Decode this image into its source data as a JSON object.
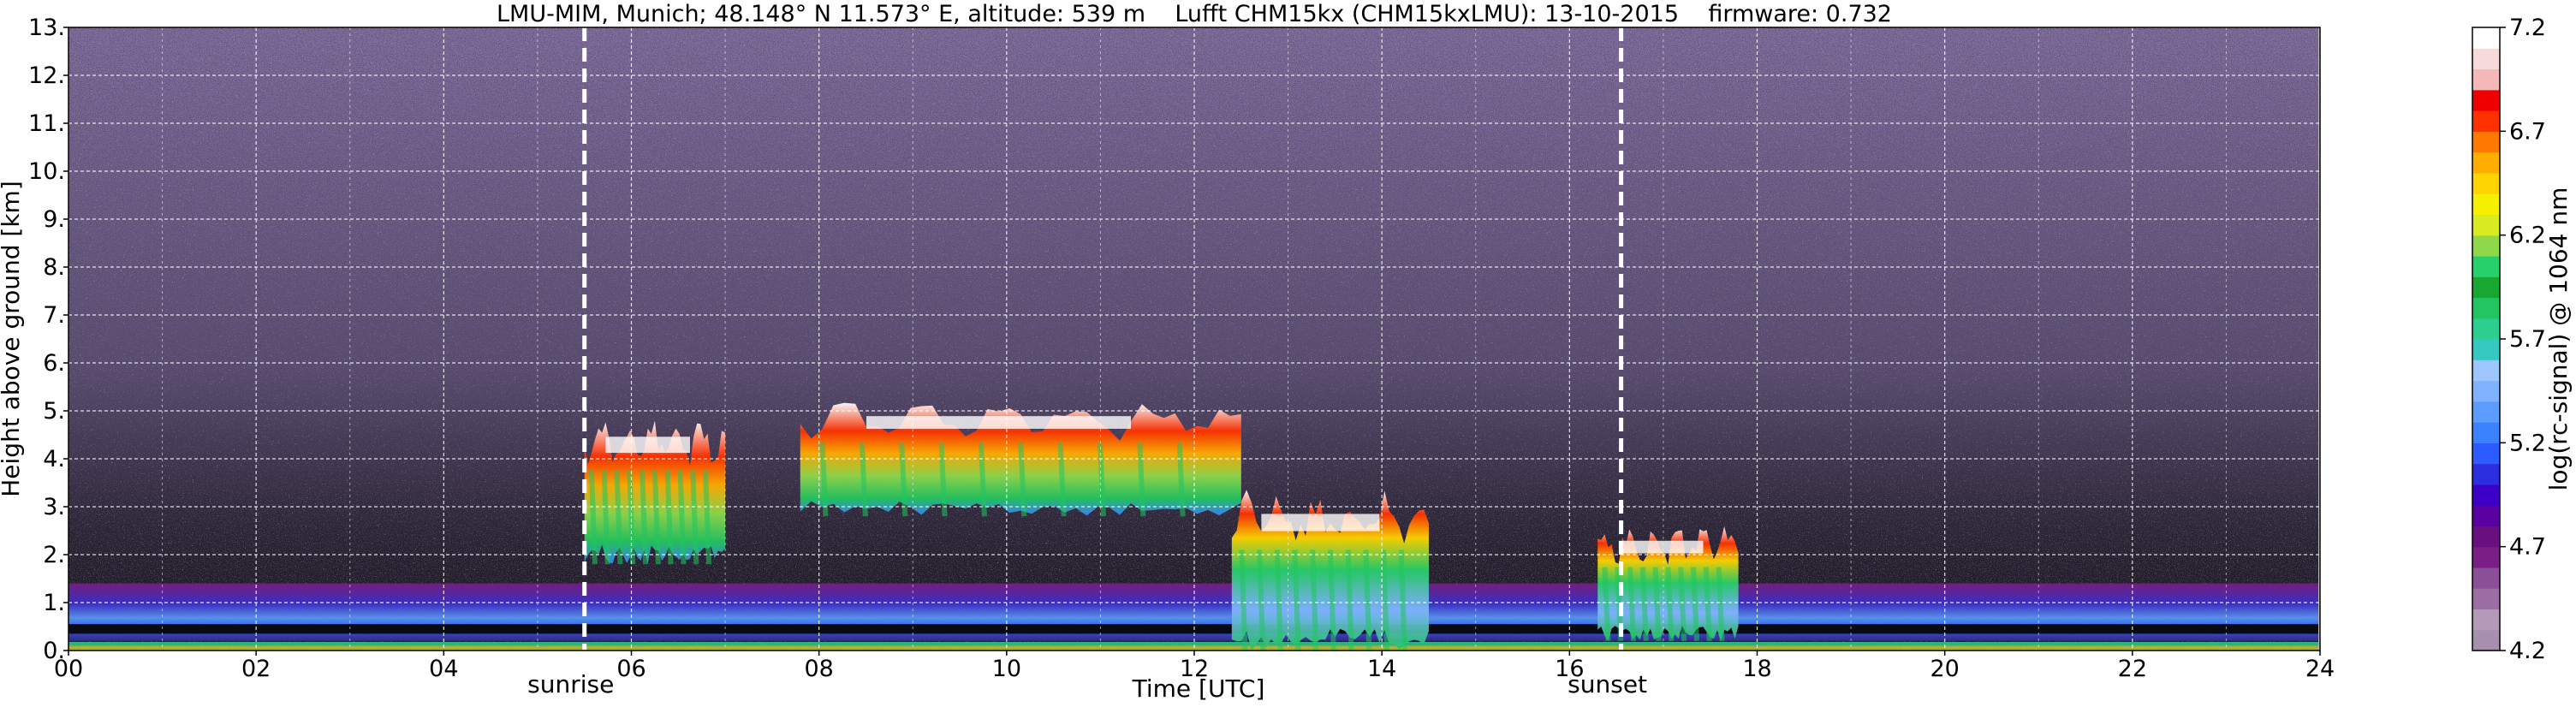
{
  "chart_data": {
    "type": "heatmap",
    "title": "LMU-MIM, Munich; 48.148° N 11.573° E, altitude: 539 m    Lufft CHM15kx (CHM15kxLMU): 13-10-2015    firmware: 0.732",
    "xlabel": "Time [UTC]",
    "ylabel": "Height above ground [km]",
    "xlim": [
      0,
      24
    ],
    "ylim": [
      0,
      13
    ],
    "x_ticks": [
      "00",
      "02",
      "04",
      "06",
      "08",
      "10",
      "12",
      "14",
      "16",
      "18",
      "20",
      "22",
      "24"
    ],
    "y_ticks": [
      "0.",
      "1.",
      "2.",
      "3.",
      "4.",
      "5.",
      "6.",
      "7.",
      "8.",
      "9.",
      "10.",
      "11.",
      "12.",
      "13."
    ],
    "grid": true,
    "annotations": [
      {
        "text": "sunrise",
        "x": 5.5
      },
      {
        "text": "sunset",
        "x": 16.55
      }
    ],
    "colorbar": {
      "label": "log(rc-signal) @ 1064 nm",
      "min": 4.2,
      "max": 7.2,
      "ticks": [
        "4.2",
        "4.7",
        "5.2",
        "5.7",
        "6.2",
        "6.7",
        "7.2"
      ],
      "colors": [
        "#a78fb0",
        "#b49ab9",
        "#9c6fa4",
        "#8a4f97",
        "#7a1f86",
        "#6a0f80",
        "#5a00a0",
        "#3c00c8",
        "#2b2fe0",
        "#2c5cff",
        "#3b82ff",
        "#5c9cff",
        "#7fb3ff",
        "#9dc6ff",
        "#35c8c0",
        "#2ccf90",
        "#22c560",
        "#18a832",
        "#26d06a",
        "#8fd84a",
        "#d8ea20",
        "#f4f000",
        "#ffd400",
        "#ffad00",
        "#ff7800",
        "#ff3000",
        "#f00000",
        "#f4b8b8",
        "#f7dada",
        "#ffffff"
      ]
    },
    "features": [
      {
        "name": "background noise",
        "x": [
          0,
          24
        ],
        "y": [
          0,
          13
        ]
      },
      {
        "name": "boundary layer aerosol",
        "x": [
          0,
          24
        ],
        "y": [
          0.2,
          1.4
        ]
      },
      {
        "name": "cloud",
        "x": [
          5.5,
          7.0
        ],
        "y": [
          1.8,
          4.6
        ]
      },
      {
        "name": "cloud",
        "x": [
          7.8,
          12.5
        ],
        "y": [
          2.8,
          5.0
        ]
      },
      {
        "name": "cloud",
        "x": [
          12.4,
          14.5
        ],
        "y": [
          0.0,
          3.0
        ]
      },
      {
        "name": "cloud",
        "x": [
          16.3,
          17.8
        ],
        "y": [
          0.2,
          2.4
        ]
      }
    ]
  }
}
